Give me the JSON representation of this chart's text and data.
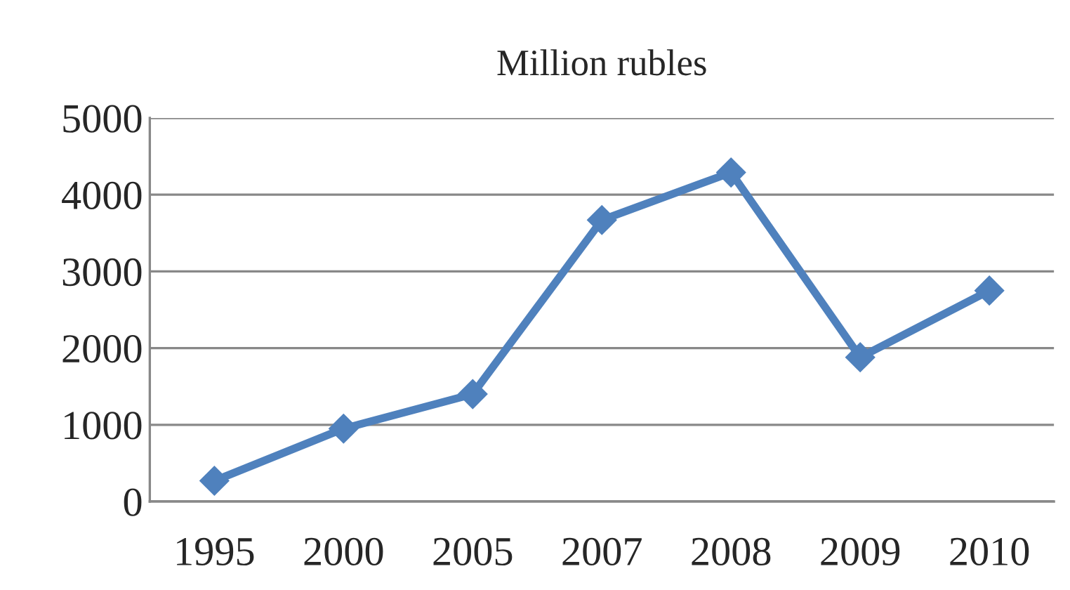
{
  "chart_data": {
    "type": "line",
    "title": "Million rubles",
    "categories": [
      "1995",
      "2000",
      "2005",
      "2007",
      "2008",
      "2009",
      "2010"
    ],
    "series": [
      {
        "color": "#4f81bd",
        "values": [
          270,
          950,
          1400,
          3670,
          4290,
          1880,
          2750
        ]
      }
    ],
    "ylim": [
      0,
      5000
    ],
    "yticks": [
      0,
      1000,
      2000,
      3000,
      4000,
      5000
    ],
    "grid": "y",
    "marker": "diamond",
    "line_style": "solid"
  }
}
